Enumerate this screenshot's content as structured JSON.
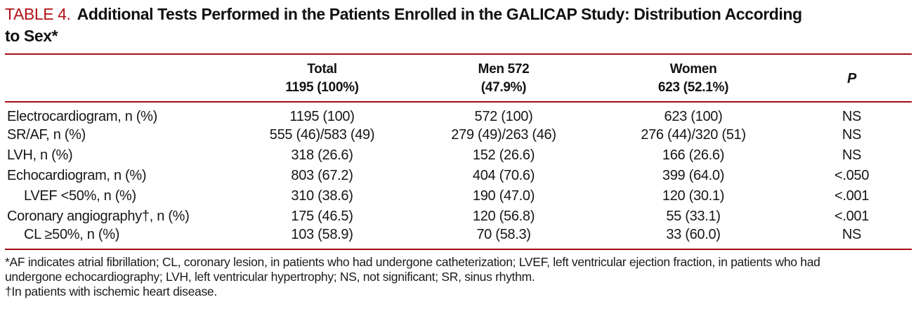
{
  "title": {
    "label": "TABLE 4.",
    "line1": "Additional Tests Performed in the Patients Enrolled in the GALICAP Study: Distribution According",
    "line2": "to Sex*"
  },
  "colors": {
    "accent_red": "#b21218",
    "rule_red": "#a30d12",
    "text_color": "#161616"
  },
  "table": {
    "headers": {
      "total": {
        "line1": "Total",
        "line2": "1195 (100%)"
      },
      "men": {
        "line1": "Men 572",
        "line2": "(47.9%)"
      },
      "women": {
        "line1": "Women",
        "line2": "623 (52.1%)"
      },
      "p": "P"
    },
    "rows": [
      {
        "label": "Electrocardiogram, n (%)",
        "total": "1195 (100)",
        "men": "572 (100)",
        "women": "623 (100)",
        "p": "NS"
      },
      {
        "label": "SR/AF, n (%)",
        "total": "555 (46)/583 (49)",
        "men": "279 (49)/263 (46)",
        "women": "276 (44)/320 (51)",
        "p": "NS"
      },
      {
        "label": "LVH, n (%)",
        "total": "318 (26.6)",
        "men": "152 (26.6)",
        "women": "166 (26.6)",
        "p": "NS"
      },
      {
        "label": "Echocardiogram, n (%)",
        "total": "803 (67.2)",
        "men": "404 (70.6)",
        "women": "399 (64.0)",
        "p": "<.050"
      },
      {
        "label": "LVEF <50%, n (%)",
        "total": "310 (38.6)",
        "men": "190 (47.0)",
        "women": "120 (30.1)",
        "p": "<.001"
      },
      {
        "label": "Coronary angiography†, n (%)",
        "total": "175 (46.5)",
        "men": "120 (56.8)",
        "women": "55 (33.1)",
        "p": "<.001"
      },
      {
        "label": "CL ≥50%, n (%)",
        "total": "103 (58.9)",
        "men": "70 (58.3)",
        "women": "33 (60.0)",
        "p": "NS"
      }
    ]
  },
  "footnotes": {
    "lines": [
      "*AF indicates atrial fibrillation; CL, coronary lesion, in patients who had undergone catheterization; LVEF, left ventricular ejection fraction, in patients who had",
      "undergone echocardiography; LVH, left ventricular hypertrophy; NS, not significant; SR, sinus rhythm.",
      "†In patients with ischemic heart disease."
    ]
  }
}
